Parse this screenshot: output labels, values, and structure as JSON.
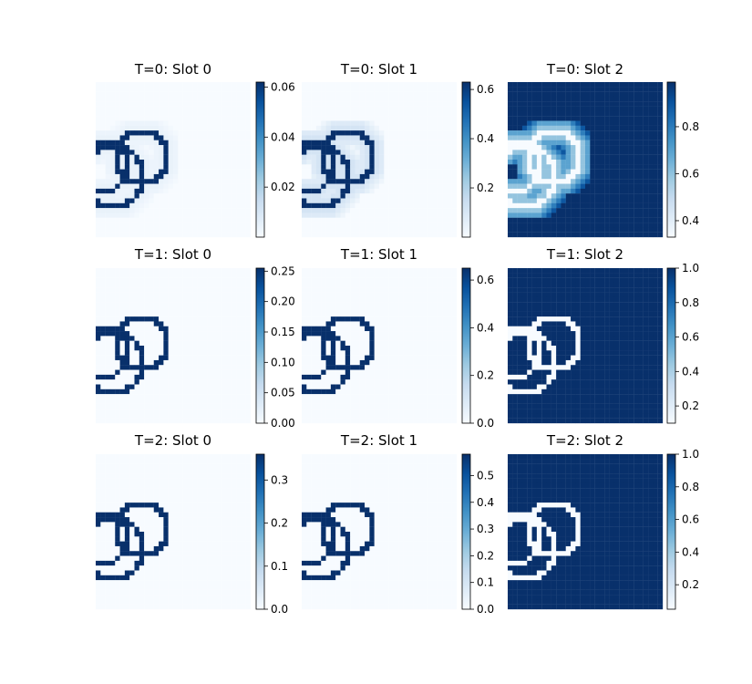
{
  "chart_data": {
    "type": "heatmap",
    "colormap": "Blues",
    "colors": {
      "low": "#f7fbff",
      "high": "#08306b"
    },
    "panels": [
      {
        "title": "T=0: Slot 0",
        "mode": "edge",
        "blur": 0.04,
        "background": 0.0,
        "ring": 1.0,
        "cbar_ticks": [
          "0.02",
          "0.04",
          "0.06"
        ],
        "cbar_range": [
          0.0,
          0.062
        ]
      },
      {
        "title": "T=0: Slot 1",
        "mode": "edge",
        "blur": 0.1,
        "background": 0.0,
        "ring": 1.0,
        "cbar_ticks": [
          "0.2",
          "0.4",
          "0.6"
        ],
        "cbar_range": [
          0.0,
          0.63
        ]
      },
      {
        "title": "T=0: Slot 2",
        "mode": "bg",
        "blur": 0.25,
        "background": 1.0,
        "ring": 0.0,
        "cbar_ticks": [
          "0.4",
          "0.6",
          "0.8"
        ],
        "cbar_range": [
          0.33,
          0.99
        ]
      },
      {
        "title": "T=1: Slot 0",
        "mode": "edge",
        "blur": 0.0,
        "background": 0.0,
        "ring": 1.0,
        "cbar_ticks": [
          "0.00",
          "0.05",
          "0.10",
          "0.15",
          "0.20",
          "0.25"
        ],
        "cbar_range": [
          0.0,
          0.255
        ]
      },
      {
        "title": "T=1: Slot 1",
        "mode": "edge",
        "blur": 0.0,
        "background": 0.0,
        "ring": 1.0,
        "cbar_ticks": [
          "0.0",
          "0.2",
          "0.4",
          "0.6"
        ],
        "cbar_range": [
          0.0,
          0.65
        ]
      },
      {
        "title": "T=1: Slot 2",
        "mode": "bg",
        "blur": 0.0,
        "background": 1.0,
        "ring": 0.0,
        "cbar_ticks": [
          "0.2",
          "0.4",
          "0.6",
          "0.8",
          "1.0"
        ],
        "cbar_range": [
          0.1,
          1.0
        ]
      },
      {
        "title": "T=2: Slot 0",
        "mode": "edge",
        "blur": 0.0,
        "background": 0.0,
        "ring": 1.0,
        "cbar_ticks": [
          "0.0",
          "0.1",
          "0.2",
          "0.3"
        ],
        "cbar_range": [
          0.0,
          0.36
        ]
      },
      {
        "title": "T=2: Slot 1",
        "mode": "edge",
        "blur": 0.0,
        "background": 0.0,
        "ring": 1.0,
        "cbar_ticks": [
          "0.0",
          "0.1",
          "0.2",
          "0.3",
          "0.4",
          "0.5"
        ],
        "cbar_range": [
          0.0,
          0.58
        ]
      },
      {
        "title": "T=2: Slot 2",
        "mode": "bg",
        "blur": 0.0,
        "background": 1.0,
        "ring": 0.0,
        "cbar_ticks": [
          "0.2",
          "0.4",
          "0.6",
          "0.8",
          "1.0"
        ],
        "cbar_range": [
          0.05,
          1.0
        ]
      }
    ]
  }
}
